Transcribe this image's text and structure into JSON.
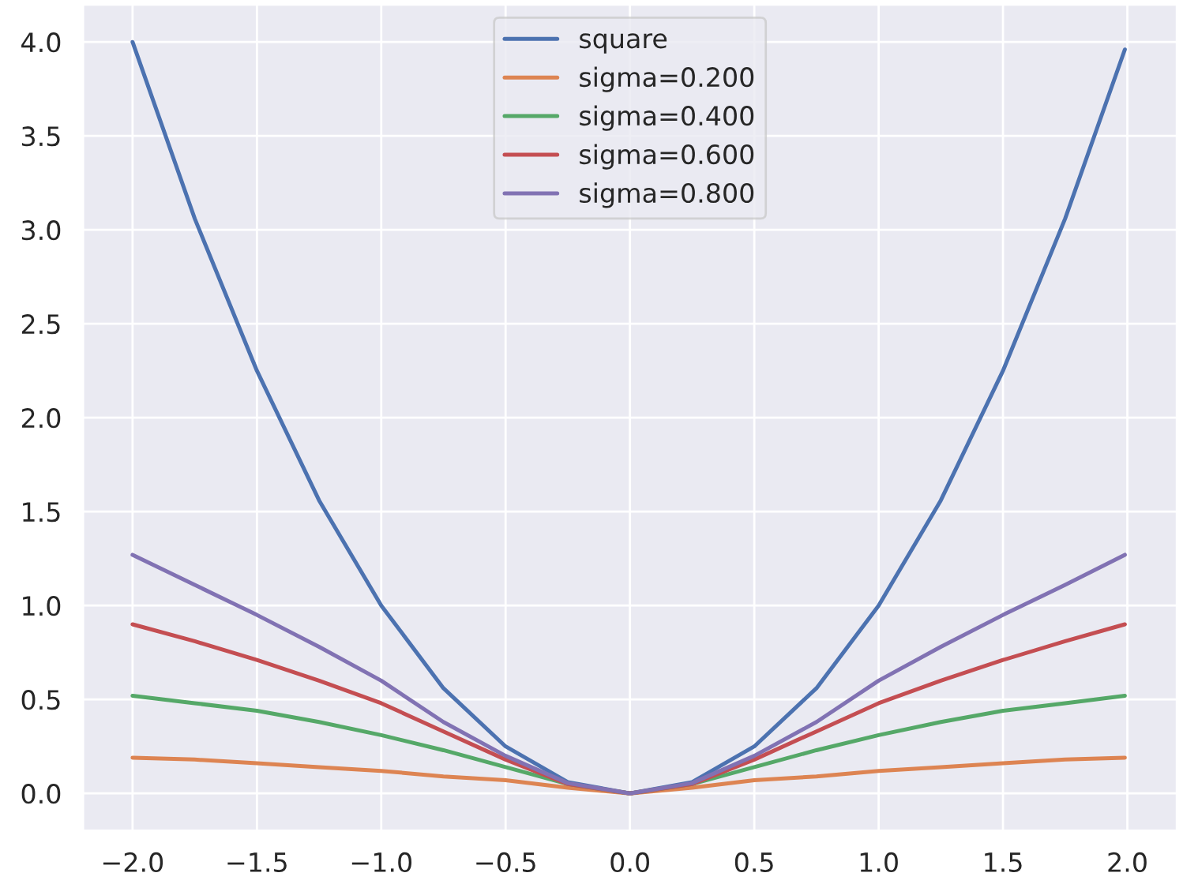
{
  "chart_data": {
    "type": "line",
    "x": [
      -2,
      -1.75,
      -1.5,
      -1.25,
      -1,
      -0.75,
      -0.5,
      -0.25,
      0,
      0.25,
      0.5,
      0.75,
      1,
      1.25,
      1.5,
      1.75,
      1.99
    ],
    "series": [
      {
        "name": "square",
        "color": "#4c72b0",
        "values": [
          4.0,
          3.06,
          2.25,
          1.56,
          1.0,
          0.56,
          0.25,
          0.06,
          0,
          0.06,
          0.25,
          0.56,
          1.0,
          1.56,
          2.25,
          3.06,
          3.96
        ]
      },
      {
        "name": "sigma=0.200",
        "color": "#dd8452",
        "values": [
          0.19,
          0.18,
          0.16,
          0.14,
          0.12,
          0.09,
          0.07,
          0.03,
          0,
          0.03,
          0.07,
          0.09,
          0.12,
          0.14,
          0.16,
          0.18,
          0.19
        ]
      },
      {
        "name": "sigma=0.400",
        "color": "#55a868",
        "values": [
          0.52,
          0.48,
          0.44,
          0.38,
          0.31,
          0.23,
          0.14,
          0.05,
          0,
          0.05,
          0.14,
          0.23,
          0.31,
          0.38,
          0.44,
          0.48,
          0.52
        ]
      },
      {
        "name": "sigma=0.600",
        "color": "#c44e52",
        "values": [
          0.9,
          0.81,
          0.71,
          0.6,
          0.48,
          0.33,
          0.18,
          0.05,
          0,
          0.05,
          0.18,
          0.33,
          0.48,
          0.6,
          0.71,
          0.81,
          0.9
        ]
      },
      {
        "name": "sigma=0.800",
        "color": "#8172b3",
        "values": [
          1.27,
          1.11,
          0.95,
          0.78,
          0.6,
          0.38,
          0.2,
          0.055,
          0,
          0.055,
          0.2,
          0.38,
          0.6,
          0.78,
          0.95,
          1.11,
          1.27
        ]
      }
    ],
    "xlim": [
      -2.2,
      2.2
    ],
    "ylim": [
      -0.2,
      4.2
    ],
    "xticks": [
      {
        "value": -2,
        "label": "−2.0"
      },
      {
        "value": -1.5,
        "label": "−1.5"
      },
      {
        "value": -1,
        "label": "−1.0"
      },
      {
        "value": -0.5,
        "label": "−0.5"
      },
      {
        "value": 0,
        "label": "0.0"
      },
      {
        "value": 0.5,
        "label": "0.5"
      },
      {
        "value": 1,
        "label": "1.0"
      },
      {
        "value": 1.5,
        "label": "1.5"
      },
      {
        "value": 2,
        "label": "2.0"
      }
    ],
    "yticks": [
      {
        "value": 0,
        "label": "0.0"
      },
      {
        "value": 0.5,
        "label": "0.5"
      },
      {
        "value": 1,
        "label": "1.0"
      },
      {
        "value": 1.5,
        "label": "1.5"
      },
      {
        "value": 2,
        "label": "2.0"
      },
      {
        "value": 2.5,
        "label": "2.5"
      },
      {
        "value": 3,
        "label": "3.0"
      },
      {
        "value": 3.5,
        "label": "3.5"
      },
      {
        "value": 4,
        "label": "4.0"
      }
    ],
    "grid": true,
    "legend": "top"
  }
}
